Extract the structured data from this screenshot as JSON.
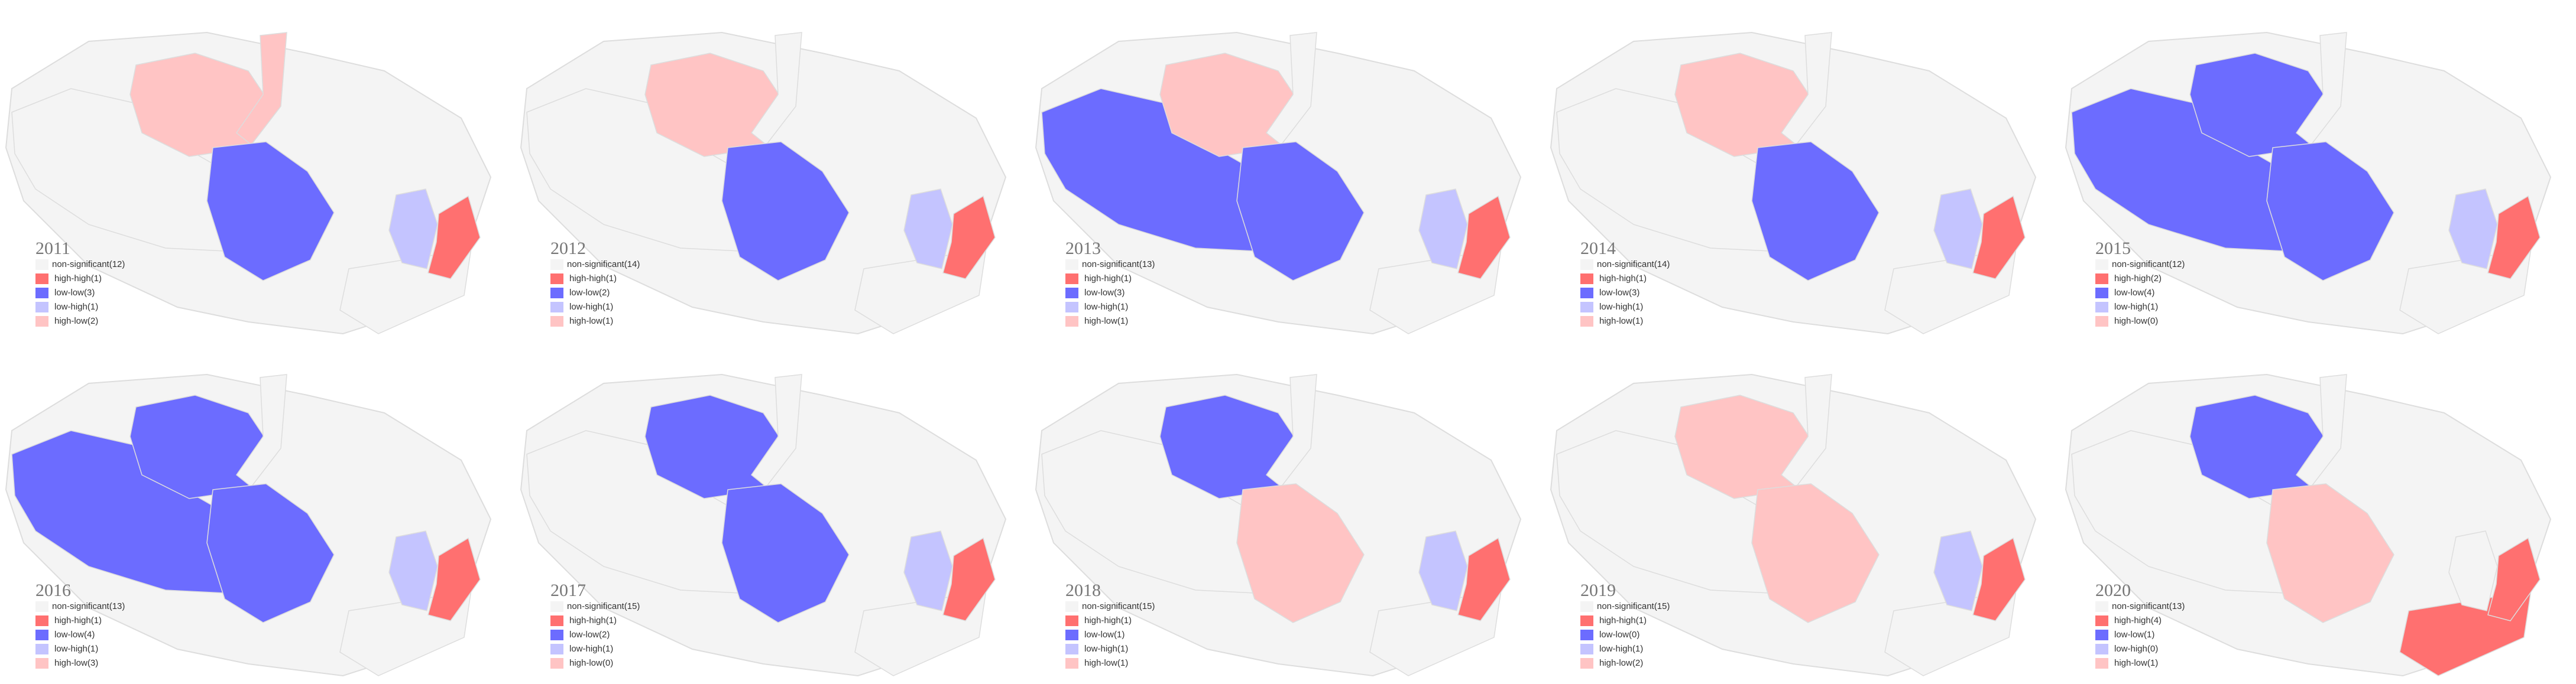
{
  "legend_colors": [
    "#f4f4f4",
    "#ff7070",
    "#6c6cff",
    "#c4c4ff",
    "#ffc4c4"
  ],
  "panels": [
    {
      "year": "2011",
      "legend": [
        "non-significant(12)",
        "high-high(1)",
        "low-low(3)",
        "low-high(1)",
        "high-low(2)"
      ]
    },
    {
      "year": "2012",
      "legend": [
        "non-significant(14)",
        "high-high(1)",
        "low-low(2)",
        "low-high(1)",
        "high-low(1)"
      ]
    },
    {
      "year": "2013",
      "legend": [
        "non-significant(13)",
        "high-high(1)",
        "low-low(3)",
        "low-high(1)",
        "high-low(1)"
      ]
    },
    {
      "year": "2014",
      "legend": [
        "non-significant(14)",
        "high-high(1)",
        "low-low(3)",
        "low-high(1)",
        "high-low(1)"
      ]
    },
    {
      "year": "2015",
      "legend": [
        "non-significant(12)",
        "high-high(2)",
        "low-low(4)",
        "low-high(1)",
        "high-low(0)"
      ]
    },
    {
      "year": "2016",
      "legend": [
        "non-significant(13)",
        "high-high(1)",
        "low-low(4)",
        "low-high(1)",
        "high-low(3)"
      ]
    },
    {
      "year": "2017",
      "legend": [
        "non-significant(15)",
        "high-high(1)",
        "low-low(2)",
        "low-high(1)",
        "high-low(0)"
      ]
    },
    {
      "year": "2018",
      "legend": [
        "non-significant(15)",
        "high-high(1)",
        "low-low(1)",
        "low-high(1)",
        "high-low(1)"
      ]
    },
    {
      "year": "2019",
      "legend": [
        "non-significant(15)",
        "high-high(1)",
        "low-low(0)",
        "low-high(1)",
        "high-low(2)"
      ]
    },
    {
      "year": "2020",
      "legend": [
        "non-significant(13)",
        "high-high(4)",
        "low-low(1)",
        "low-high(0)",
        "high-low(1)"
      ]
    }
  ]
}
